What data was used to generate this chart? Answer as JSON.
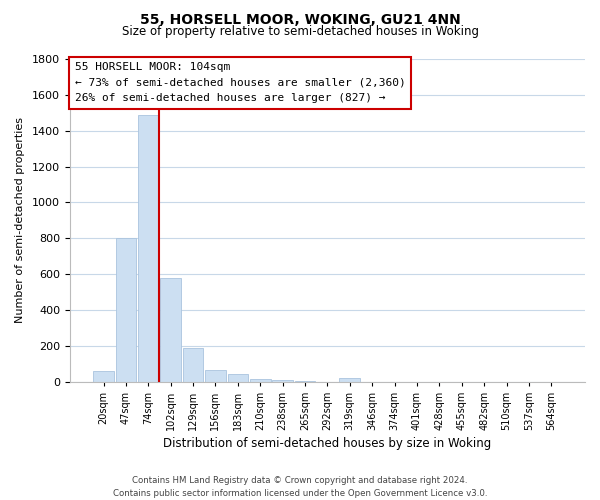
{
  "title": "55, HORSELL MOOR, WOKING, GU21 4NN",
  "subtitle": "Size of property relative to semi-detached houses in Woking",
  "xlabel": "Distribution of semi-detached houses by size in Woking",
  "ylabel": "Number of semi-detached properties",
  "bar_values": [
    60,
    800,
    1490,
    580,
    190,
    65,
    40,
    15,
    10,
    5,
    0,
    20,
    0,
    0,
    0,
    0,
    0,
    0,
    0,
    0,
    0
  ],
  "bin_labels": [
    "20sqm",
    "47sqm",
    "74sqm",
    "102sqm",
    "129sqm",
    "156sqm",
    "183sqm",
    "210sqm",
    "238sqm",
    "265sqm",
    "292sqm",
    "319sqm",
    "346sqm",
    "374sqm",
    "401sqm",
    "428sqm",
    "455sqm",
    "482sqm",
    "510sqm",
    "537sqm",
    "564sqm"
  ],
  "bar_color": "#ccdff2",
  "bar_edge_color": "#aac4de",
  "property_line_color": "#cc0000",
  "annotation_line1": "55 HORSELL MOOR: 104sqm",
  "annotation_line2": "← 73% of semi-detached houses are smaller (2,360)",
  "annotation_line3": "26% of semi-detached houses are larger (827) →",
  "ylim": [
    0,
    1800
  ],
  "yticks": [
    0,
    200,
    400,
    600,
    800,
    1000,
    1200,
    1400,
    1600,
    1800
  ],
  "footer_line1": "Contains HM Land Registry data © Crown copyright and database right 2024.",
  "footer_line2": "Contains public sector information licensed under the Open Government Licence v3.0.",
  "background_color": "#ffffff",
  "grid_color": "#c8d8e8",
  "fig_width": 6.0,
  "fig_height": 5.0
}
